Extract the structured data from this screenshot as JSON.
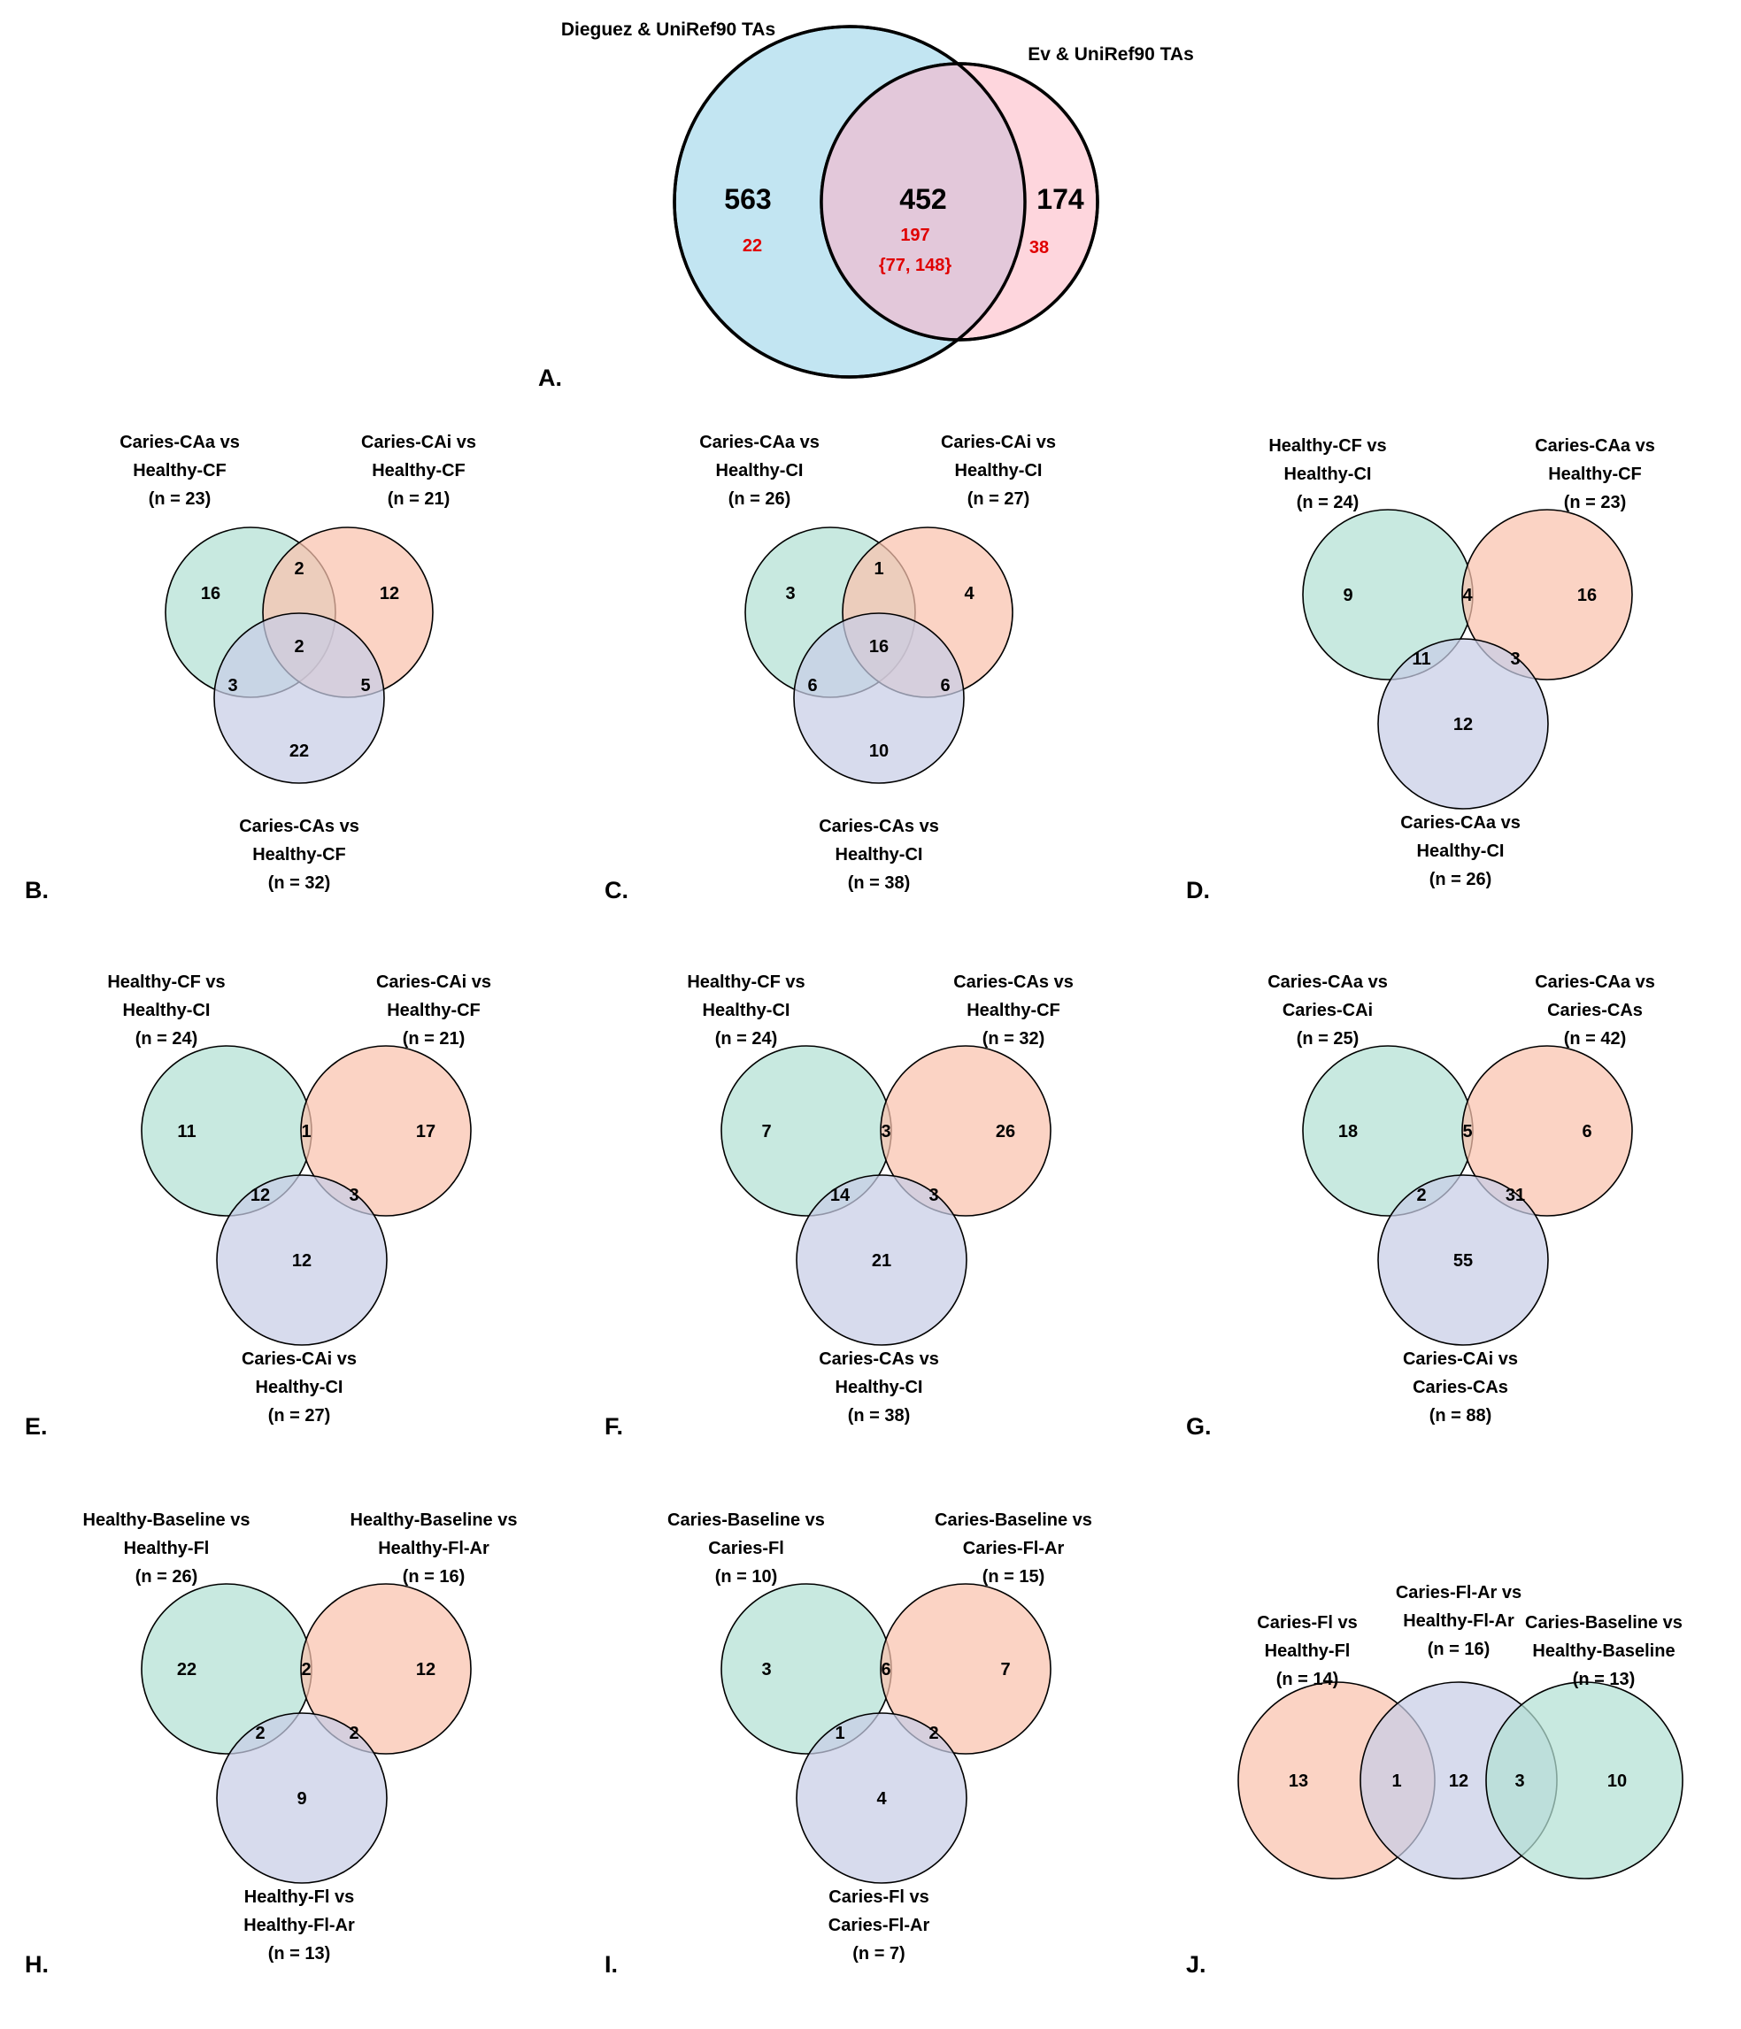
{
  "colors": {
    "green": "#b3e0d4",
    "orange": "#f9c2ad",
    "purple": "#c7cde6",
    "a_left": "#c2e5f2",
    "a_right": "#fed6dd",
    "a_overlap": "#e3c8da",
    "highlight_red": "#e00000",
    "outline": "#000000"
  },
  "panelA": {
    "letter": "A.",
    "left_title": "Dieguez & UniRef90 TAs",
    "right_title": "Ev & UniRef90 TAs",
    "left_only": "563",
    "overlap": "452",
    "right_only": "174",
    "left_red": "22",
    "overlap_red": "197",
    "overlap_red2": "{77, 148}",
    "right_red": "38"
  },
  "panels": [
    {
      "letter": "B.",
      "layout": "triangle",
      "circle_colors": [
        "green",
        "orange",
        "purple"
      ],
      "sets": [
        {
          "lines": [
            "Caries-CAa vs",
            "Healthy-CF",
            "(n = 23)"
          ]
        },
        {
          "lines": [
            "Caries-CAi vs",
            "Healthy-CF",
            "(n = 21)"
          ]
        },
        {
          "lines": [
            "Caries-CAs vs",
            "Healthy-CF",
            "(n = 32)"
          ]
        }
      ],
      "counts": {
        "a": "16",
        "b": "12",
        "c": "22",
        "ab": "2",
        "ac": "3",
        "bc": "5",
        "abc": "2"
      }
    },
    {
      "letter": "C.",
      "layout": "triangle",
      "circle_colors": [
        "green",
        "orange",
        "purple"
      ],
      "sets": [
        {
          "lines": [
            "Caries-CAa vs",
            "Healthy-CI",
            "(n = 26)"
          ]
        },
        {
          "lines": [
            "Caries-CAi vs",
            "Healthy-CI",
            "(n = 27)"
          ]
        },
        {
          "lines": [
            "Caries-CAs vs",
            "Healthy-CI",
            "(n = 38)"
          ]
        }
      ],
      "counts": {
        "a": "3",
        "b": "4",
        "c": "10",
        "ab": "1",
        "ac": "6",
        "bc": "6",
        "abc": "16"
      }
    },
    {
      "letter": "D.",
      "layout": "pair",
      "circle_colors": [
        "green",
        "orange",
        "purple"
      ],
      "sets": [
        {
          "lines": [
            "Healthy-CF vs",
            "Healthy-CI",
            "(n = 24)"
          ]
        },
        {
          "lines": [
            "Caries-CAa vs",
            "Healthy-CF",
            "(n = 23)"
          ]
        },
        {
          "lines": [
            "Caries-CAa vs",
            "Healthy-CI",
            "(n = 26)"
          ]
        }
      ],
      "counts": {
        "a": "9",
        "b": "16",
        "c": "12",
        "ab": "4",
        "ac": "11",
        "bc": "3"
      }
    },
    {
      "letter": "E.",
      "layout": "pair",
      "circle_colors": [
        "green",
        "orange",
        "purple"
      ],
      "sets": [
        {
          "lines": [
            "Healthy-CF vs",
            "Healthy-CI",
            "(n = 24)"
          ]
        },
        {
          "lines": [
            "Caries-CAi vs",
            "Healthy-CF",
            "(n = 21)"
          ]
        },
        {
          "lines": [
            "Caries-CAi vs",
            "Healthy-CI",
            "(n = 27)"
          ]
        }
      ],
      "counts": {
        "a": "11",
        "b": "17",
        "c": "12",
        "ab": "1",
        "ac": "12",
        "bc": "3"
      }
    },
    {
      "letter": "F.",
      "layout": "pair",
      "circle_colors": [
        "green",
        "orange",
        "purple"
      ],
      "sets": [
        {
          "lines": [
            "Healthy-CF vs",
            "Healthy-CI",
            "(n = 24)"
          ]
        },
        {
          "lines": [
            "Caries-CAs vs",
            "Healthy-CF",
            "(n = 32)"
          ]
        },
        {
          "lines": [
            "Caries-CAs vs",
            "Healthy-CI",
            "(n = 38)"
          ]
        }
      ],
      "counts": {
        "a": "7",
        "b": "26",
        "c": "21",
        "ab": "3",
        "ac": "14",
        "bc": "3"
      }
    },
    {
      "letter": "G.",
      "layout": "pair",
      "circle_colors": [
        "green",
        "orange",
        "purple"
      ],
      "sets": [
        {
          "lines": [
            "Caries-CAa vs",
            "Caries-CAi",
            "(n = 25)"
          ]
        },
        {
          "lines": [
            "Caries-CAa vs",
            "Caries-CAs",
            "(n = 42)"
          ]
        },
        {
          "lines": [
            "Caries-CAi vs",
            "Caries-CAs",
            "(n = 88)"
          ]
        }
      ],
      "counts": {
        "a": "18",
        "b": "6",
        "c": "55",
        "ab": "5",
        "ac": "2",
        "bc": "31"
      }
    },
    {
      "letter": "H.",
      "layout": "pair",
      "circle_colors": [
        "green",
        "orange",
        "purple"
      ],
      "sets": [
        {
          "lines": [
            "Healthy-Baseline vs",
            "Healthy-Fl",
            "(n = 26)"
          ]
        },
        {
          "lines": [
            "Healthy-Baseline vs",
            "Healthy-Fl-Ar",
            "(n = 16)"
          ]
        },
        {
          "lines": [
            "Healthy-Fl vs",
            "Healthy-Fl-Ar",
            "(n = 13)"
          ]
        }
      ],
      "counts": {
        "a": "22",
        "b": "12",
        "c": "9",
        "ab": "2",
        "ac": "2",
        "bc": "2"
      }
    },
    {
      "letter": "I.",
      "layout": "pair",
      "circle_colors": [
        "green",
        "orange",
        "purple"
      ],
      "sets": [
        {
          "lines": [
            "Caries-Baseline vs",
            "Caries-Fl",
            "(n = 10)"
          ]
        },
        {
          "lines": [
            "Caries-Baseline vs",
            "Caries-Fl-Ar",
            "(n = 15)"
          ]
        },
        {
          "lines": [
            "Caries-Fl vs",
            "Caries-Fl-Ar",
            "(n = 7)"
          ]
        }
      ],
      "counts": {
        "a": "3",
        "b": "7",
        "c": "4",
        "ab": "6",
        "ac": "1",
        "bc": "2"
      }
    },
    {
      "letter": "J.",
      "layout": "chain",
      "circle_colors": [
        "orange",
        "purple",
        "green"
      ],
      "sets": [
        {
          "lines": [
            "Caries-Fl vs",
            "Healthy-Fl",
            "(n = 14)"
          ]
        },
        {
          "lines": [
            "Caries-Fl-Ar vs",
            "Healthy-Fl-Ar",
            "(n = 16)"
          ]
        },
        {
          "lines": [
            "Caries-Baseline vs",
            "Healthy-Baseline",
            "(n = 13)"
          ]
        }
      ],
      "counts": {
        "a": "13",
        "ab": "1",
        "b": "12",
        "bc": "3",
        "c": "10"
      }
    }
  ]
}
